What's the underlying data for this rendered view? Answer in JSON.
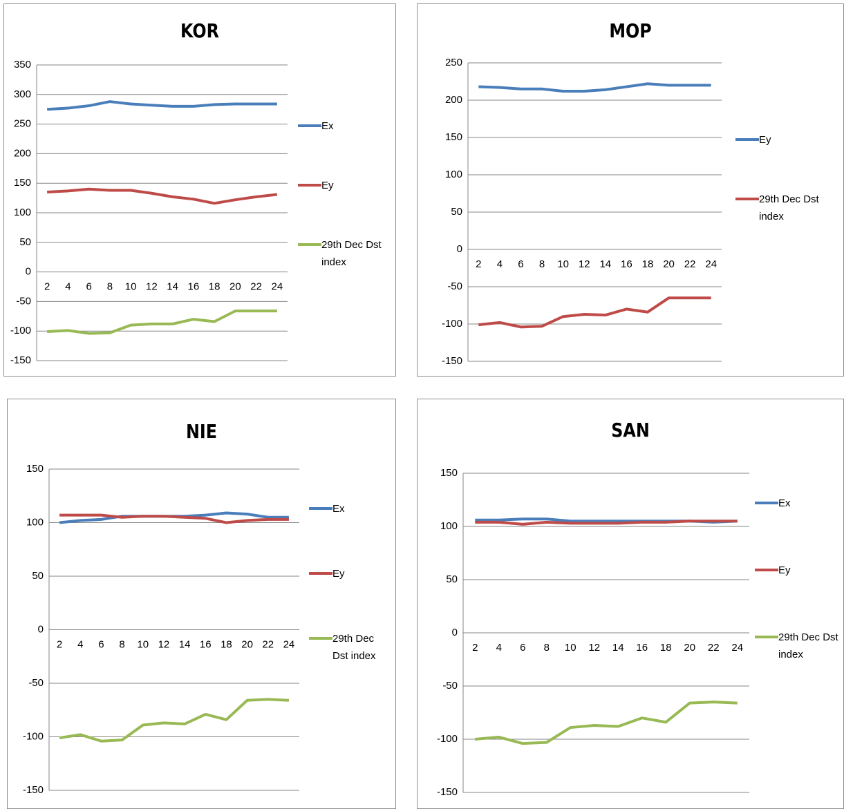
{
  "chart_data": [
    {
      "type": "line",
      "title": "KOR",
      "categories": [
        "2",
        "4",
        "6",
        "8",
        "10",
        "12",
        "14",
        "16",
        "18",
        "20",
        "22",
        "24"
      ],
      "series": [
        {
          "name": "Ex",
          "color": "#4a7ebb",
          "values": [
            275,
            277,
            281,
            288,
            284,
            282,
            280,
            280,
            283,
            284,
            284,
            284
          ]
        },
        {
          "name": "Ey",
          "color": "#be4b48",
          "values": [
            135,
            137,
            140,
            138,
            138,
            133,
            127,
            123,
            116,
            122,
            127,
            131
          ]
        },
        {
          "name": "29th Dec Dst index",
          "color": "#98b954",
          "values": [
            -101,
            -99,
            -104,
            -103,
            -90,
            -88,
            -88,
            -80,
            -84,
            -66,
            -66,
            -66
          ]
        }
      ],
      "ylim": [
        -150,
        350
      ],
      "yticks": [
        -150,
        -100,
        -50,
        0,
        50,
        100,
        150,
        200,
        250,
        300,
        350
      ],
      "grid": true,
      "legend": "right"
    },
    {
      "type": "line",
      "title": "MOP",
      "categories": [
        "2",
        "4",
        "6",
        "8",
        "10",
        "12",
        "14",
        "16",
        "18",
        "20",
        "22",
        "24"
      ],
      "series": [
        {
          "name": "Ey",
          "color": "#4a7ebb",
          "values": [
            218,
            217,
            215,
            215,
            212,
            212,
            214,
            218,
            222,
            220,
            220,
            220
          ]
        },
        {
          "name": "29th Dec Dst index",
          "color": "#be4b48",
          "values": [
            -101,
            -98,
            -104,
            -103,
            -90,
            -87,
            -88,
            -80,
            -84,
            -65,
            -65,
            -65
          ]
        }
      ],
      "ylim": [
        -150,
        250
      ],
      "yticks": [
        -150,
        -100,
        -50,
        0,
        50,
        100,
        150,
        200,
        250
      ],
      "grid": true,
      "legend": "right"
    },
    {
      "type": "line",
      "title": "NIE",
      "categories": [
        "2",
        "4",
        "6",
        "8",
        "10",
        "12",
        "14",
        "16",
        "18",
        "20",
        "22",
        "24"
      ],
      "series": [
        {
          "name": "Ex",
          "color": "#4a7ebb",
          "values": [
            100,
            102,
            103,
            106,
            106,
            106,
            106,
            107,
            109,
            108,
            105,
            105
          ]
        },
        {
          "name": "Ey",
          "color": "#be4b48",
          "values": [
            107,
            107,
            107,
            105,
            106,
            106,
            105,
            104,
            100,
            102,
            103,
            103
          ]
        },
        {
          "name": "29th Dec Dst index",
          "color": "#98b954",
          "values": [
            -101,
            -98,
            -104,
            -103,
            -89,
            -87,
            -88,
            -79,
            -84,
            -66,
            -65,
            -66
          ]
        }
      ],
      "ylim": [
        -150,
        150
      ],
      "yticks": [
        -150,
        -100,
        -50,
        0,
        50,
        100,
        150
      ],
      "grid": true,
      "legend": "right"
    },
    {
      "type": "line",
      "title": "SAN",
      "categories": [
        "2",
        "4",
        "6",
        "8",
        "10",
        "12",
        "14",
        "16",
        "18",
        "20",
        "22",
        "24"
      ],
      "series": [
        {
          "name": "Ex",
          "color": "#4a7ebb",
          "values": [
            106,
            106,
            107,
            107,
            105,
            105,
            105,
            105,
            105,
            105,
            104,
            105
          ]
        },
        {
          "name": "Ey",
          "color": "#be4b48",
          "values": [
            104,
            104,
            102,
            104,
            103,
            103,
            103,
            104,
            104,
            105,
            105,
            105
          ]
        },
        {
          "name": "29th Dec Dst index",
          "color": "#98b954",
          "values": [
            -100,
            -98,
            -104,
            -103,
            -89,
            -87,
            -88,
            -80,
            -84,
            -66,
            -65,
            -66
          ]
        }
      ],
      "ylim": [
        -150,
        150
      ],
      "yticks": [
        -150,
        -100,
        -50,
        0,
        50,
        100,
        150
      ],
      "grid": true,
      "legend": "right"
    }
  ]
}
